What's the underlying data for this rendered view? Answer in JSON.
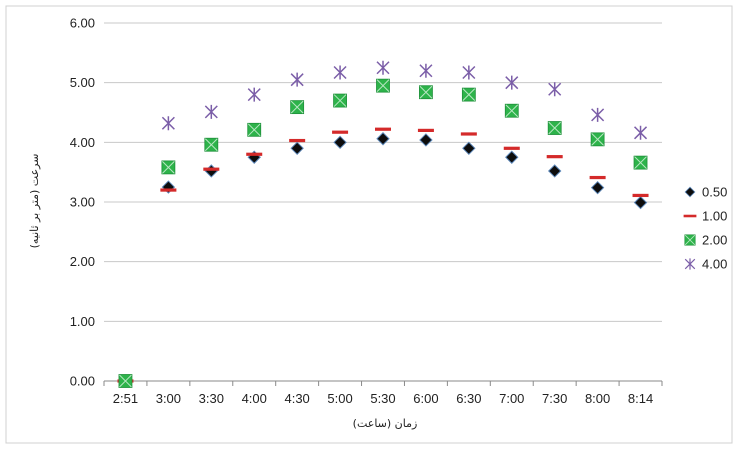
{
  "chart_data": {
    "type": "scatter",
    "title": "",
    "xlabel": "زمان (ساعت)",
    "ylabel": "سرعت (متر بر ثانیه)",
    "categories": [
      "2:51",
      "3:00",
      "3:30",
      "4:00",
      "4:30",
      "5:00",
      "5:30",
      "6:00",
      "6:30",
      "7:00",
      "7:30",
      "8:00",
      "8:14"
    ],
    "ylim": [
      0,
      6
    ],
    "yticks": [
      "0.00",
      "1.00",
      "2.00",
      "3.00",
      "4.00",
      "5.00",
      "6.00"
    ],
    "grid": "horizontal",
    "legend_position": "right",
    "series": [
      {
        "name": "0.50",
        "marker": "diamond-icon",
        "color": "#0d0d0d",
        "values": [
          0,
          3.25,
          3.52,
          3.75,
          3.9,
          4.0,
          4.06,
          4.04,
          3.9,
          3.75,
          3.52,
          3.24,
          2.99
        ]
      },
      {
        "name": "1.00",
        "marker": "dash-icon",
        "color": "#d42a2a",
        "values": [
          0,
          3.2,
          3.55,
          3.8,
          4.03,
          4.17,
          4.22,
          4.2,
          4.14,
          3.9,
          3.76,
          3.41,
          3.11
        ]
      },
      {
        "name": "2.00",
        "marker": "boxed-x-icon",
        "color": "#2db34a",
        "values": [
          0,
          3.58,
          3.96,
          4.21,
          4.59,
          4.7,
          4.95,
          4.84,
          4.8,
          4.53,
          4.24,
          4.05,
          3.66
        ]
      },
      {
        "name": "4.00",
        "marker": "asterisk-icon",
        "color": "#7b5ea8",
        "values": [
          null,
          4.32,
          4.51,
          4.8,
          5.05,
          5.17,
          5.25,
          5.2,
          5.17,
          5.0,
          4.89,
          4.46,
          4.16
        ]
      }
    ]
  }
}
